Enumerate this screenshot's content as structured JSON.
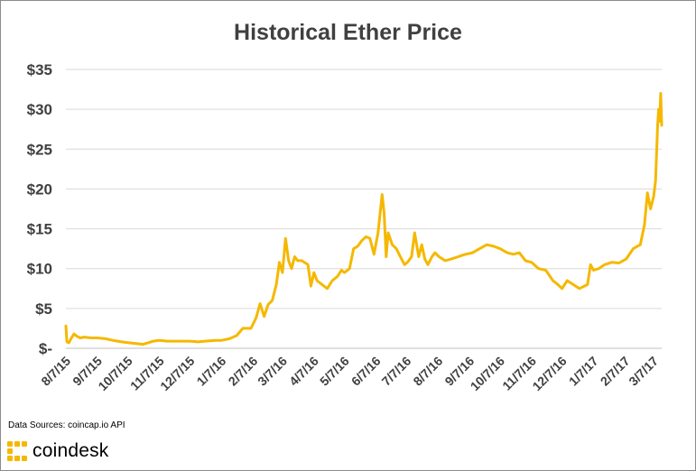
{
  "chart_data": {
    "type": "line",
    "title": "Historical Ether Price",
    "series": [
      {
        "color": "#F5B800",
        "x": [
          "2015-08-07",
          "2015-08-08",
          "2015-08-10",
          "2015-08-12",
          "2015-08-15",
          "2015-08-18",
          "2015-08-21",
          "2015-08-25",
          "2015-09-01",
          "2015-09-07",
          "2015-09-15",
          "2015-09-22",
          "2015-10-01",
          "2015-10-07",
          "2015-10-15",
          "2015-10-22",
          "2015-11-01",
          "2015-11-07",
          "2015-11-15",
          "2015-11-22",
          "2015-12-01",
          "2015-12-07",
          "2015-12-15",
          "2015-12-22",
          "2016-01-01",
          "2016-01-07",
          "2016-01-15",
          "2016-01-22",
          "2016-01-28",
          "2016-02-05",
          "2016-02-10",
          "2016-02-14",
          "2016-02-18",
          "2016-02-22",
          "2016-02-26",
          "2016-03-01",
          "2016-03-04",
          "2016-03-07",
          "2016-03-10",
          "2016-03-13",
          "2016-03-16",
          "2016-03-19",
          "2016-03-22",
          "2016-03-26",
          "2016-04-01",
          "2016-04-04",
          "2016-04-07",
          "2016-04-10",
          "2016-04-15",
          "2016-04-20",
          "2016-04-25",
          "2016-04-30",
          "2016-05-04",
          "2016-05-07",
          "2016-05-12",
          "2016-05-16",
          "2016-05-20",
          "2016-05-24",
          "2016-05-28",
          "2016-06-01",
          "2016-06-05",
          "2016-06-09",
          "2016-06-13",
          "2016-06-15",
          "2016-06-17",
          "2016-06-19",
          "2016-06-23",
          "2016-06-27",
          "2016-07-01",
          "2016-07-05",
          "2016-07-08",
          "2016-07-12",
          "2016-07-15",
          "2016-07-19",
          "2016-07-22",
          "2016-07-25",
          "2016-07-28",
          "2016-08-01",
          "2016-08-04",
          "2016-08-08",
          "2016-08-14",
          "2016-08-20",
          "2016-08-27",
          "2016-09-03",
          "2016-09-10",
          "2016-09-17",
          "2016-09-24",
          "2016-10-01",
          "2016-10-07",
          "2016-10-14",
          "2016-10-20",
          "2016-10-26",
          "2016-11-01",
          "2016-11-07",
          "2016-11-14",
          "2016-11-21",
          "2016-11-28",
          "2016-12-03",
          "2016-12-07",
          "2016-12-12",
          "2016-12-18",
          "2016-12-24",
          "2017-01-01",
          "2017-01-04",
          "2017-01-07",
          "2017-01-12",
          "2017-01-18",
          "2017-01-25",
          "2017-02-01",
          "2017-02-08",
          "2017-02-15",
          "2017-02-22",
          "2017-02-26",
          "2017-03-01",
          "2017-03-04",
          "2017-03-07",
          "2017-03-09",
          "2017-03-11",
          "2017-03-12",
          "2017-03-13",
          "2017-03-14",
          "2017-03-15"
        ],
        "y": [
          2.8,
          0.8,
          0.7,
          1.2,
          1.8,
          1.5,
          1.3,
          1.4,
          1.3,
          1.3,
          1.2,
          1.0,
          0.8,
          0.7,
          0.6,
          0.5,
          0.9,
          1.0,
          0.9,
          0.9,
          0.9,
          0.9,
          0.8,
          0.9,
          1.0,
          1.0,
          1.2,
          1.6,
          2.5,
          2.5,
          3.8,
          5.6,
          4.0,
          5.5,
          6.0,
          8.0,
          10.8,
          9.5,
          13.8,
          11.0,
          10.0,
          11.5,
          11.0,
          11.0,
          10.5,
          7.8,
          9.5,
          8.5,
          8.0,
          7.5,
          8.5,
          9.0,
          9.8,
          9.5,
          10.0,
          12.5,
          12.8,
          13.5,
          14.0,
          13.8,
          11.8,
          14.5,
          19.3,
          17.0,
          11.5,
          14.5,
          13.0,
          12.5,
          11.5,
          10.5,
          10.8,
          11.5,
          14.5,
          11.5,
          13.0,
          11.2,
          10.5,
          11.5,
          12.0,
          11.5,
          11.0,
          11.2,
          11.5,
          11.8,
          12.0,
          12.5,
          13.0,
          12.8,
          12.5,
          12.0,
          11.8,
          12.0,
          11.0,
          10.8,
          10.0,
          9.8,
          8.5,
          8.0,
          7.5,
          8.5,
          8.0,
          7.5,
          8.0,
          10.5,
          9.8,
          10.0,
          10.5,
          10.8,
          10.7,
          11.2,
          12.5,
          13.0,
          15.5,
          19.5,
          17.5,
          19.0,
          21.0,
          28.0,
          30.0,
          28.5,
          32.0,
          28.0
        ]
      }
    ],
    "x_ticks": [
      "8/7/15",
      "9/7/15",
      "10/7/15",
      "11/7/15",
      "12/7/15",
      "1/7/16",
      "2/7/16",
      "3/7/16",
      "4/7/16",
      "5/7/16",
      "6/7/16",
      "7/7/16",
      "8/7/16",
      "9/7/16",
      "10/7/16",
      "11/7/16",
      "12/7/16",
      "1/7/17",
      "2/7/17",
      "3/7/17"
    ],
    "y_ticks": [
      "$-",
      "$5",
      "$10",
      "$15",
      "$20",
      "$25",
      "$30",
      "$35"
    ],
    "ylim": [
      0,
      35
    ],
    "xlim": [
      "2015-08-07",
      "2017-03-15"
    ],
    "grid": true,
    "legend": "none"
  },
  "footer": {
    "source": "Data Sources: coincap.io API",
    "brand": "coindesk",
    "brand_color": "#F5B800"
  }
}
